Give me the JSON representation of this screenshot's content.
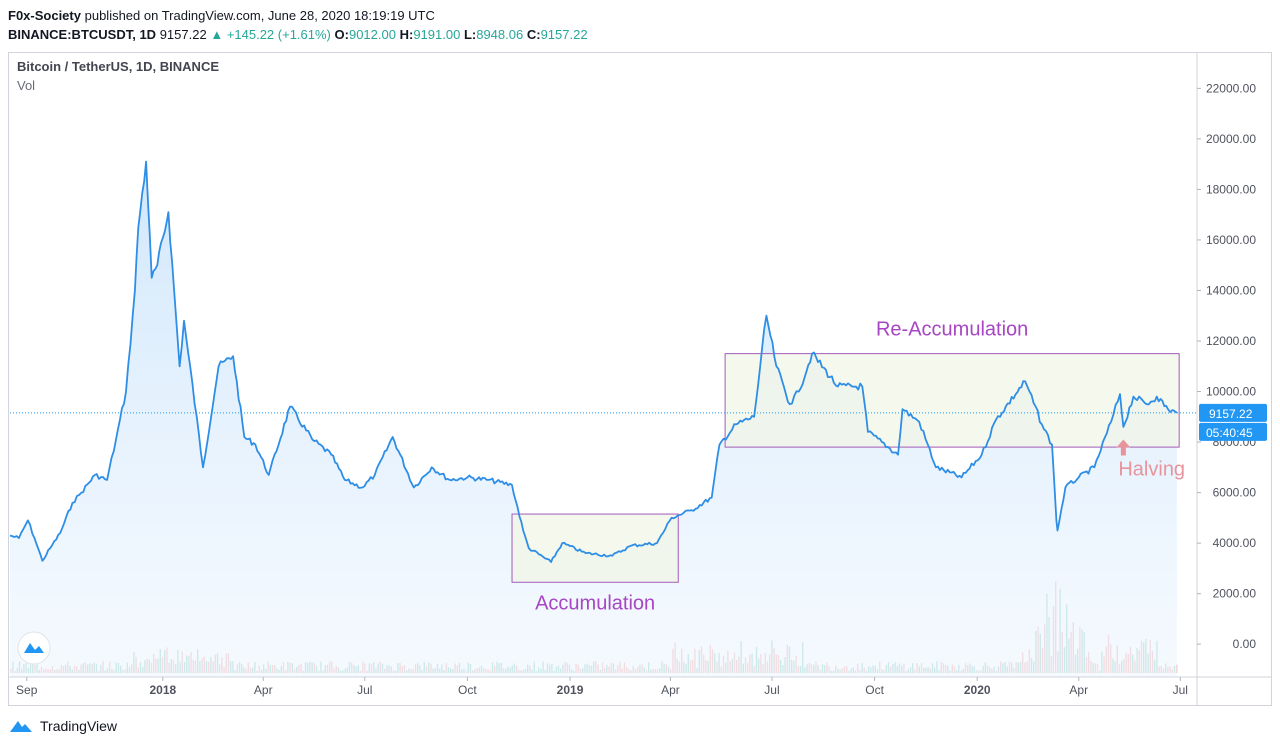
{
  "header": {
    "author": "F0x-Society",
    "published": "published on TradingView.com, June 28, 2020 18:19:19 UTC",
    "symbol": "BINANCE:BTCUSDT, 1D",
    "last": "9157.22",
    "change": "+145.22 (+1.61%)",
    "o_label": "O:",
    "o": "9012.00",
    "h_label": "H:",
    "h": "9191.00",
    "l_label": "L:",
    "l": "8948.06",
    "c_label": "C:",
    "c": "9157.22"
  },
  "legend": {
    "title": "Bitcoin / TetherUS, 1D, BINANCE",
    "vol": "Vol"
  },
  "footer": {
    "brand": "TradingView"
  },
  "colors": {
    "line": "#2e8ee6",
    "area": "#cfe6fb",
    "box_fill": "#f1f5e6",
    "box_stroke": "#a25bb8",
    "label_text": "#a845c4",
    "halving": "#e8949c",
    "vol_up": "#7fc8b9",
    "vol_down": "#f0a2a2",
    "price_tag": "#2196f3"
  },
  "chart_data": {
    "type": "line",
    "title": "Bitcoin / TetherUS, 1D, BINANCE",
    "y_ticks": [
      22000,
      20000,
      18000,
      16000,
      14000,
      12000,
      10000,
      8000,
      6000,
      4000,
      2000,
      0
    ],
    "y_tick_labels": [
      "22000.00",
      "20000.00",
      "18000.00",
      "16000.00",
      "14000.00",
      "12000.00",
      "10000.00",
      "8000.00",
      "6000.00",
      "4000.00",
      "2000.00",
      "0.00"
    ],
    "ylim": [
      -1300,
      23400
    ],
    "xlim": [
      "2017-08-17",
      "2020-07-16"
    ],
    "x_ticks": [
      {
        "date": "2017-09-01",
        "label": "Sep",
        "bold": false
      },
      {
        "date": "2018-01-01",
        "label": "2018",
        "bold": true
      },
      {
        "date": "2018-04-01",
        "label": "Apr",
        "bold": false
      },
      {
        "date": "2018-07-01",
        "label": "Jul",
        "bold": false
      },
      {
        "date": "2018-10-01",
        "label": "Oct",
        "bold": false
      },
      {
        "date": "2019-01-01",
        "label": "2019",
        "bold": true
      },
      {
        "date": "2019-04-01",
        "label": "Apr",
        "bold": false
      },
      {
        "date": "2019-07-01",
        "label": "Jul",
        "bold": false
      },
      {
        "date": "2019-10-01",
        "label": "Oct",
        "bold": false
      },
      {
        "date": "2020-01-01",
        "label": "2020",
        "bold": true
      },
      {
        "date": "2020-04-01",
        "label": "Apr",
        "bold": false
      },
      {
        "date": "2020-07-01",
        "label": "Jul",
        "bold": false
      }
    ],
    "price_series": {
      "x": [
        "2017-08-17",
        "2017-08-25",
        "2017-09-02",
        "2017-09-08",
        "2017-09-15",
        "2017-09-22",
        "2017-10-01",
        "2017-10-12",
        "2017-10-20",
        "2017-11-01",
        "2017-11-12",
        "2017-11-20",
        "2017-11-29",
        "2017-12-07",
        "2017-12-10",
        "2017-12-17",
        "2017-12-22",
        "2017-12-27",
        "2018-01-06",
        "2018-01-16",
        "2018-01-20",
        "2018-02-06",
        "2018-02-20",
        "2018-03-05",
        "2018-03-15",
        "2018-03-25",
        "2018-04-06",
        "2018-04-25",
        "2018-05-15",
        "2018-06-01",
        "2018-06-13",
        "2018-06-29",
        "2018-07-10",
        "2018-07-26",
        "2018-08-14",
        "2018-08-30",
        "2018-09-15",
        "2018-10-01",
        "2018-10-20",
        "2018-11-10",
        "2018-11-20",
        "2018-11-25",
        "2018-12-15",
        "2018-12-25",
        "2019-01-15",
        "2019-02-08",
        "2019-02-25",
        "2019-03-20",
        "2019-04-02",
        "2019-04-20",
        "2019-05-08",
        "2019-05-15",
        "2019-05-30",
        "2019-06-15",
        "2019-06-26",
        "2019-07-05",
        "2019-07-17",
        "2019-07-25",
        "2019-08-06",
        "2019-08-29",
        "2019-09-20",
        "2019-09-25",
        "2019-10-22",
        "2019-10-26",
        "2019-11-10",
        "2019-11-25",
        "2019-12-18",
        "2020-01-05",
        "2020-01-18",
        "2020-02-13",
        "2020-02-28",
        "2020-03-08",
        "2020-03-12",
        "2020-03-13",
        "2020-03-20",
        "2020-04-01",
        "2020-04-15",
        "2020-04-30",
        "2020-05-08",
        "2020-05-11",
        "2020-05-20",
        "2020-06-01",
        "2020-06-10",
        "2020-06-20",
        "2020-06-28"
      ],
      "y": [
        4300,
        4200,
        4900,
        4200,
        3300,
        3800,
        4400,
        5600,
        6000,
        6700,
        6500,
        8100,
        10000,
        14000,
        16500,
        19100,
        14500,
        15000,
        17100,
        11000,
        12800,
        7000,
        11000,
        11400,
        8200,
        7900,
        6700,
        9400,
        8100,
        7500,
        6500,
        6200,
        6700,
        8200,
        6200,
        7000,
        6500,
        6600,
        6500,
        6300,
        4500,
        3800,
        3250,
        4000,
        3600,
        3500,
        3900,
        4000,
        5000,
        5300,
        5800,
        7900,
        8700,
        9000,
        13000,
        11000,
        9500,
        10000,
        11500,
        10200,
        10200,
        8400,
        7500,
        9300,
        8800,
        7000,
        6600,
        7500,
        8900,
        10400,
        8700,
        7900,
        4900,
        4500,
        6200,
        6600,
        7000,
        8800,
        9900,
        8600,
        9800,
        9500,
        9800,
        9300,
        9157.22
      ]
    },
    "current_price": 9157.22,
    "countdown": "05:40:45",
    "annotations": [
      {
        "label": "Accumulation",
        "x_from": "2018-11-10",
        "x_to": "2019-04-08",
        "y_from": 2450,
        "y_to": 5150
      },
      {
        "label": "Re-Accumulation",
        "x_from": "2019-05-20",
        "x_to": "2020-06-30",
        "y_from": 7800,
        "y_to": 11500
      },
      {
        "label": "Halving",
        "x": "2020-05-11",
        "y": 8100
      }
    ],
    "volume": "relative volume bars along the bottom, green up / red down, large spike around March 2020"
  }
}
